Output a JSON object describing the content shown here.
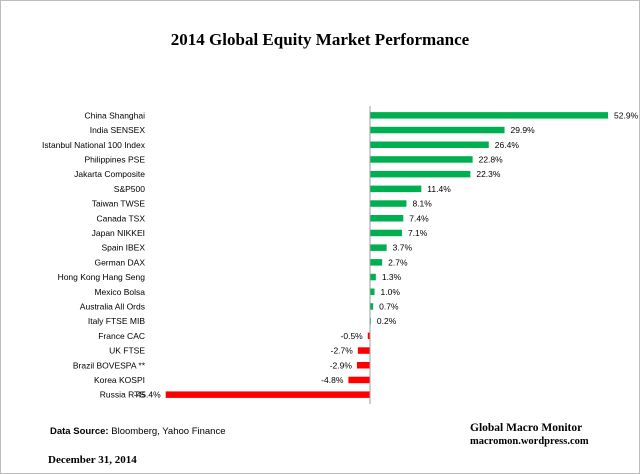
{
  "chart_data": {
    "type": "bar",
    "orientation": "horizontal",
    "title": "2014 Global Equity Market Performance",
    "categories": [
      "China Shanghai",
      "India SENSEX",
      "Istanbul National 100 Index",
      "Philippines PSE",
      "Jakarta Composite",
      "S&P500",
      "Taiwan  TWSE",
      "Canada TSX",
      "Japan NIKKEI",
      "Spain IBEX",
      "German DAX",
      "Hong Kong Hang Seng",
      "Mexico Bolsa",
      "Australia All Ords",
      "Italy FTSE MIB",
      "France CAC",
      "UK FTSE",
      "Brazil BOVESPA **",
      "Korea KOSPI",
      "Russia RTS"
    ],
    "values": [
      52.9,
      29.9,
      26.4,
      22.8,
      22.3,
      11.4,
      8.1,
      7.4,
      7.1,
      3.7,
      2.7,
      1.3,
      1.0,
      0.7,
      0.2,
      -0.5,
      -2.7,
      -2.9,
      -4.8,
      -45.4
    ],
    "data_labels": [
      "52.9%",
      "29.9%",
      "26.4%",
      "22.8%",
      "22.3%",
      "11.4%",
      "8.1%",
      "7.4%",
      "7.1%",
      "3.7%",
      "2.7%",
      "1.3%",
      "1.0%",
      "0.7%",
      "0.2%",
      "-0.5%",
      "-2.7%",
      "-2.9%",
      "-4.8%",
      "-45.4%"
    ],
    "positive_color": "#00b050",
    "negative_color": "#ff0000",
    "grid": false
  },
  "source": {
    "label": "Data Source:",
    "text": "Bloomberg, Yahoo Finance"
  },
  "date": "December 31, 2014",
  "brand": {
    "name": "Global Macro Monitor",
    "site": "macromon.wordpress.com"
  }
}
